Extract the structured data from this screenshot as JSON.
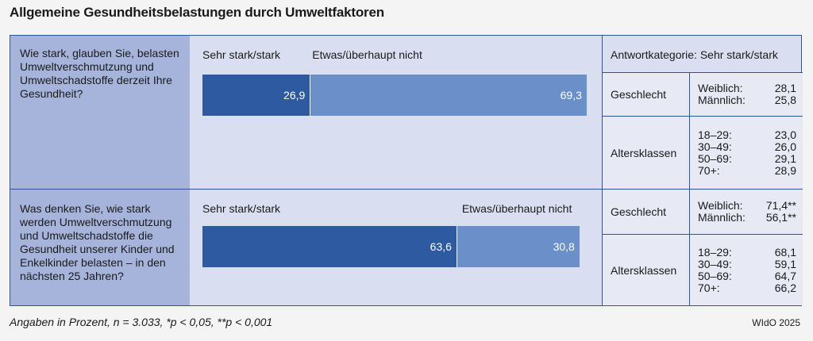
{
  "title": "Allgemeine Gesundheitsbelastungen durch Umweltfaktoren",
  "stats_header": "Antwortkategorie: Sehr stark/stark",
  "footnote": "Angaben in Prozent, n = 3.033, *p < 0,05, **p < 0,001",
  "source": "WIdO 2025",
  "colors": {
    "dark": "#2d5aa0",
    "light": "#6b8fc8",
    "question_bg": "#a6b4db",
    "border": "#2f5597"
  },
  "chart_data": {
    "type": "bar",
    "orientation": "horizontal-stacked",
    "series_names": [
      "Sehr stark/stark",
      "Etwas/überhaupt nicht"
    ],
    "questions": [
      {
        "text": "Wie stark, glauben Sie, belasten Umweltverschmutzung und Umweltschadstoffe derzeit Ihre Gesundheit?",
        "values": [
          26.9,
          69.3
        ],
        "value_labels": [
          "26,9",
          "69,3"
        ],
        "groups": [
          {
            "name": "Geschlecht",
            "rows": [
              [
                "Weiblich:",
                "28,1"
              ],
              [
                "Männlich:",
                "25,8"
              ]
            ]
          },
          {
            "name": "Altersklassen",
            "rows": [
              [
                "18–29:",
                "23,0"
              ],
              [
                "30–49:",
                "26,0"
              ],
              [
                "50–69:",
                "29,1"
              ],
              [
                "70+:",
                "28,9"
              ]
            ]
          }
        ]
      },
      {
        "text": "Was denken Sie, wie stark werden Umweltverschmutzung und Umweltschadstoffe die Gesundheit unserer Kinder und Enkelkinder belasten – in den nächsten 25 Jahren?",
        "values": [
          63.6,
          30.8
        ],
        "value_labels": [
          "63,6",
          "30,8"
        ],
        "groups": [
          {
            "name": "Geschlecht",
            "rows": [
              [
                "Weiblich:",
                "71,4**"
              ],
              [
                "Männlich:",
                "56,1**"
              ]
            ]
          },
          {
            "name": "Altersklassen",
            "rows": [
              [
                "18–29:",
                "68,1"
              ],
              [
                "30–49:",
                "59,1"
              ],
              [
                "50–69:",
                "64,7"
              ],
              [
                "70+:",
                "66,2"
              ]
            ]
          }
        ]
      }
    ]
  }
}
